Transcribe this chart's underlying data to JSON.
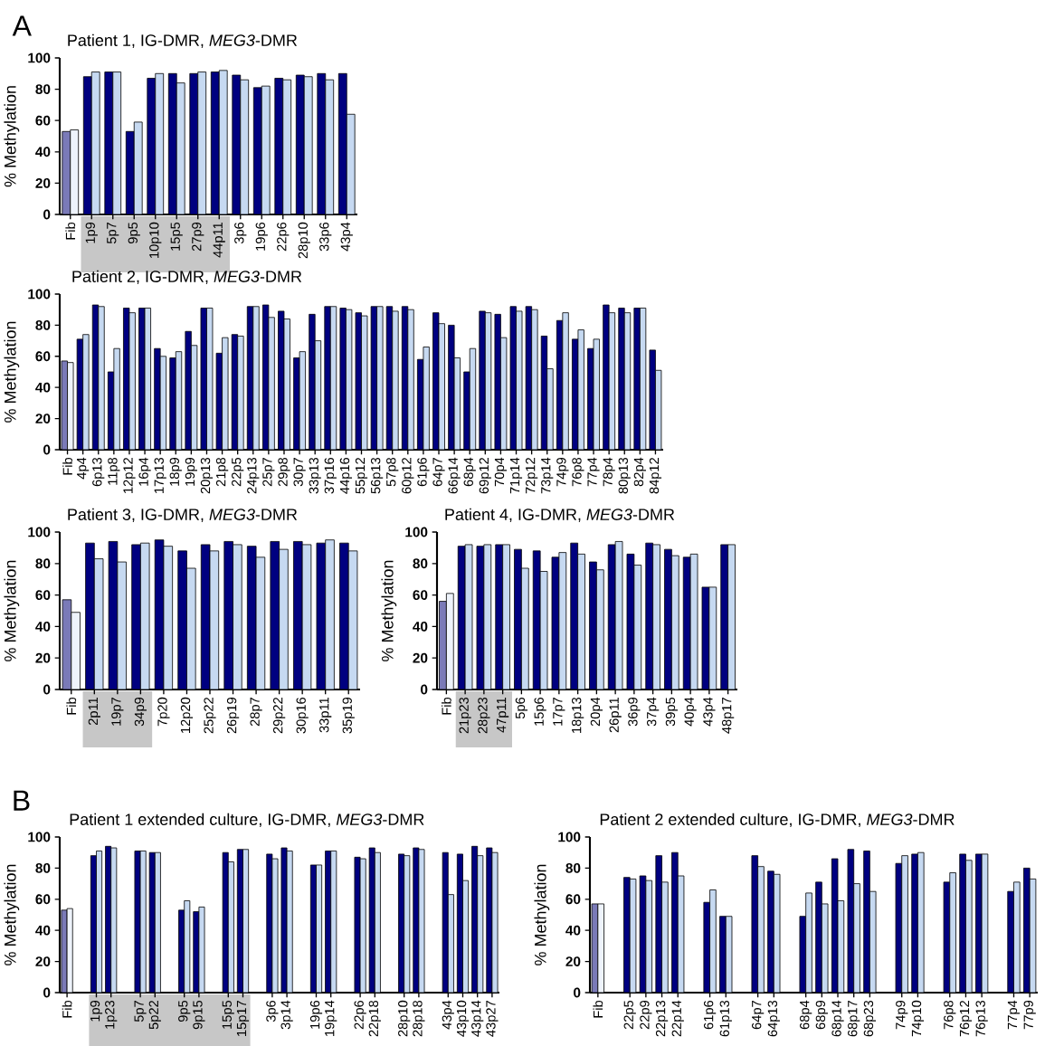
{
  "chart_data": [
    {
      "type": "bar",
      "title": "Patient 1, IG-DMR, *MEG3*-DMR",
      "ylabel": "% Methylation",
      "annotations": [
        "A"
      ],
      "ylim": [
        0,
        100
      ],
      "yticks": [
        0,
        20,
        40,
        60,
        80,
        100
      ],
      "categories": [
        "Fib",
        "1p9",
        "5p7",
        "9p5",
        "10p10",
        "15p5",
        "27p9",
        "44p11",
        "3p6",
        "19p6",
        "22p6",
        "28p10",
        "33p6",
        "43p4"
      ],
      "series": [
        {
          "colors": [
            "#7a7ab8",
            "#000080",
            "#000080",
            "#000080",
            "#000080",
            "#000080",
            "#000080",
            "#000080",
            "#000080",
            "#000080",
            "#000080",
            "#000080",
            "#000080",
            "#000080"
          ],
          "values": [
            53,
            88,
            91,
            53,
            87,
            90,
            90,
            91,
            89,
            81,
            87,
            89,
            90,
            90
          ]
        },
        {
          "colors": [
            "#eef3fb",
            "#c6d9f1",
            "#c6d9f1",
            "#c6d9f1",
            "#c6d9f1",
            "#c6d9f1",
            "#c6d9f1",
            "#c6d9f1",
            "#c6d9f1",
            "#c6d9f1",
            "#c6d9f1",
            "#c6d9f1",
            "#c6d9f1",
            "#c6d9f1"
          ],
          "values": [
            54,
            91,
            91,
            59,
            90,
            84,
            91,
            92,
            86,
            82,
            86,
            88,
            86,
            64
          ]
        }
      ]
    },
    {
      "type": "bar",
      "title": "Patient 2, IG-DMR, *MEG3*-DMR",
      "ylabel": "% Methylation",
      "ylim": [
        0,
        100
      ],
      "yticks": [
        0,
        20,
        40,
        60,
        80,
        100
      ],
      "categories": [
        "Fib",
        "4p4",
        "6p13",
        "11p8",
        "12p12",
        "16p4",
        "17p13",
        "18p9",
        "19p9",
        "20p13",
        "21p8",
        "22p5",
        "24p13",
        "25p7",
        "29p8",
        "30p7",
        "33p13",
        "37p16",
        "44p16",
        "55p12",
        "56p13",
        "57p8",
        "60p12",
        "61p6",
        "64p7",
        "66p14",
        "68p4",
        "69p12",
        "70p4",
        "71p14",
        "72p12",
        "73p14",
        "74p9",
        "76p8",
        "77p4",
        "78p4",
        "80p13",
        "82p4",
        "84p12"
      ],
      "series": [
        {
          "colors": [
            "#7a7ab8",
            "#000080",
            "#000080",
            "#000080",
            "#000080",
            "#000080",
            "#000080",
            "#000080",
            "#000080",
            "#000080",
            "#000080",
            "#000080",
            "#000080",
            "#000080",
            "#000080",
            "#000080",
            "#000080",
            "#000080",
            "#000080",
            "#000080",
            "#000080",
            "#000080",
            "#000080",
            "#000080",
            "#000080",
            "#000080",
            "#000080",
            "#000080",
            "#000080",
            "#000080",
            "#000080",
            "#000080",
            "#000080",
            "#000080",
            "#000080",
            "#000080",
            "#000080",
            "#000080",
            "#000080"
          ],
          "values": [
            57,
            71,
            93,
            50,
            91,
            91,
            65,
            59,
            76,
            91,
            62,
            74,
            92,
            93,
            89,
            59,
            87,
            92,
            91,
            88,
            92,
            92,
            92,
            58,
            88,
            80,
            50,
            89,
            87,
            92,
            92,
            73,
            83,
            71,
            65,
            93,
            91,
            91,
            64
          ]
        },
        {
          "colors": [
            "#eef3fb",
            "#c6d9f1",
            "#c6d9f1",
            "#c6d9f1",
            "#c6d9f1",
            "#c6d9f1",
            "#c6d9f1",
            "#c6d9f1",
            "#c6d9f1",
            "#c6d9f1",
            "#c6d9f1",
            "#c6d9f1",
            "#c6d9f1",
            "#c6d9f1",
            "#c6d9f1",
            "#c6d9f1",
            "#c6d9f1",
            "#c6d9f1",
            "#c6d9f1",
            "#c6d9f1",
            "#c6d9f1",
            "#c6d9f1",
            "#c6d9f1",
            "#c6d9f1",
            "#c6d9f1",
            "#c6d9f1",
            "#c6d9f1",
            "#c6d9f1",
            "#c6d9f1",
            "#c6d9f1",
            "#c6d9f1",
            "#c6d9f1",
            "#c6d9f1",
            "#c6d9f1",
            "#c6d9f1",
            "#c6d9f1",
            "#c6d9f1",
            "#c6d9f1",
            "#c6d9f1"
          ],
          "values": [
            56,
            74,
            92,
            65,
            88,
            91,
            60,
            63,
            67,
            91,
            72,
            73,
            92,
            85,
            84,
            63,
            70,
            92,
            90,
            86,
            92,
            89,
            90,
            66,
            81,
            59,
            65,
            88,
            72,
            89,
            90,
            52,
            88,
            77,
            71,
            88,
            88,
            91,
            51
          ]
        }
      ]
    },
    {
      "type": "bar",
      "title": "Patient 3, IG-DMR, *MEG3*-DMR",
      "ylabel": "% Methylation",
      "ylim": [
        0,
        100
      ],
      "yticks": [
        0,
        20,
        40,
        60,
        80,
        100
      ],
      "categories": [
        "Fib",
        "2p11",
        "19p7",
        "34p9",
        "7p20",
        "12p20",
        "25p22",
        "26p19",
        "28p7",
        "29p22",
        "30p16",
        "33p11",
        "35p19"
      ],
      "series": [
        {
          "colors": [
            "#7a7ab8",
            "#000080",
            "#000080",
            "#000080",
            "#000080",
            "#000080",
            "#000080",
            "#000080",
            "#000080",
            "#000080",
            "#000080",
            "#000080",
            "#000080"
          ],
          "values": [
            57,
            93,
            94,
            92,
            95,
            88,
            92,
            94,
            91,
            94,
            94,
            93,
            93
          ]
        },
        {
          "colors": [
            "#eef3fb",
            "#c6d9f1",
            "#c6d9f1",
            "#c6d9f1",
            "#c6d9f1",
            "#c6d9f1",
            "#c6d9f1",
            "#c6d9f1",
            "#c6d9f1",
            "#c6d9f1",
            "#c6d9f1",
            "#c6d9f1",
            "#c6d9f1"
          ],
          "values": [
            49,
            83,
            81,
            93,
            91,
            77,
            88,
            92,
            84,
            89,
            92,
            95,
            88
          ]
        }
      ]
    },
    {
      "type": "bar",
      "title": "Patient 4, IG-DMR, *MEG3*-DMR",
      "ylabel": "% Methylation",
      "ylim": [
        0,
        100
      ],
      "yticks": [
        0,
        20,
        40,
        60,
        80,
        100
      ],
      "categories": [
        "Fib",
        "21p23",
        "28p23",
        "47p11",
        "5p6",
        "15p6",
        "17p7",
        "18p13",
        "20p4",
        "26p11",
        "36p9",
        "37p4",
        "39p5",
        "40p4",
        "43p4",
        "48p17"
      ],
      "series": [
        {
          "colors": [
            "#7a7ab8",
            "#000080",
            "#000080",
            "#000080",
            "#000080",
            "#000080",
            "#000080",
            "#000080",
            "#000080",
            "#000080",
            "#000080",
            "#000080",
            "#000080",
            "#000080",
            "#000080",
            "#000080"
          ],
          "values": [
            56,
            91,
            91,
            92,
            89,
            88,
            84,
            93,
            81,
            92,
            86,
            93,
            89,
            84,
            65,
            92
          ]
        },
        {
          "colors": [
            "#eef3fb",
            "#c6d9f1",
            "#c6d9f1",
            "#c6d9f1",
            "#c6d9f1",
            "#c6d9f1",
            "#c6d9f1",
            "#c6d9f1",
            "#c6d9f1",
            "#c6d9f1",
            "#c6d9f1",
            "#c6d9f1",
            "#c6d9f1",
            "#c6d9f1",
            "#c6d9f1",
            "#c6d9f1"
          ],
          "values": [
            61,
            92,
            92,
            92,
            77,
            75,
            87,
            86,
            76,
            94,
            79,
            92,
            85,
            86,
            65,
            92
          ]
        }
      ]
    },
    {
      "type": "bar",
      "title": "Patient 1 extended culture, IG-DMR, *MEG3*-DMR",
      "ylabel": "% Methylation",
      "annotations": [
        "B"
      ],
      "ylim": [
        0,
        100
      ],
      "yticks": [
        0,
        20,
        40,
        60,
        80,
        100
      ],
      "categories": [
        "Fib",
        null,
        "1p9",
        "1p23",
        null,
        "5p7",
        "5p22",
        null,
        "9p5",
        "9p15",
        null,
        "15p5",
        "15p17",
        null,
        "3p6",
        "3p14",
        null,
        "19p6",
        "19p14",
        null,
        "22p6",
        "22p18",
        null,
        "28p10",
        "28p18",
        null,
        "43p4",
        "43p10",
        "43p14",
        "43p27"
      ],
      "series": [
        {
          "colors": [
            "#7a7ab8",
            null,
            "#000080",
            "#000080",
            null,
            "#000080",
            "#000080",
            null,
            "#000080",
            "#000080",
            null,
            "#000080",
            "#000080",
            null,
            "#000080",
            "#000080",
            null,
            "#000080",
            "#000080",
            null,
            "#000080",
            "#000080",
            null,
            "#000080",
            "#000080",
            null,
            "#000080",
            "#000080",
            "#000080",
            "#000080"
          ],
          "values": [
            53,
            null,
            88,
            94,
            null,
            91,
            90,
            null,
            53,
            52,
            null,
            90,
            92,
            null,
            89,
            93,
            null,
            82,
            91,
            null,
            87,
            93,
            null,
            89,
            93,
            null,
            90,
            89,
            94,
            93
          ]
        },
        {
          "colors": [
            "#eef3fb",
            null,
            "#c6d9f1",
            "#c6d9f1",
            null,
            "#c6d9f1",
            "#c6d9f1",
            null,
            "#c6d9f1",
            "#c6d9f1",
            null,
            "#c6d9f1",
            "#c6d9f1",
            null,
            "#c6d9f1",
            "#c6d9f1",
            null,
            "#c6d9f1",
            "#c6d9f1",
            null,
            "#c6d9f1",
            "#c6d9f1",
            null,
            "#c6d9f1",
            "#c6d9f1",
            null,
            "#c6d9f1",
            "#c6d9f1",
            "#c6d9f1",
            "#c6d9f1"
          ],
          "values": [
            54,
            null,
            91,
            93,
            null,
            91,
            90,
            null,
            59,
            55,
            null,
            84,
            92,
            null,
            86,
            91,
            null,
            82,
            91,
            null,
            86,
            90,
            null,
            88,
            92,
            null,
            63,
            72,
            88,
            90
          ]
        }
      ]
    },
    {
      "type": "bar",
      "title": "Patient 2 extended culture, IG-DMR, *MEG3*-DMR",
      "ylabel": "% Methylation",
      "ylim": [
        0,
        100
      ],
      "yticks": [
        0,
        20,
        40,
        60,
        80,
        100
      ],
      "categories": [
        "Fib",
        null,
        "22p5",
        "22p9",
        "22p13",
        "22p14",
        null,
        "61p6",
        "61p13",
        null,
        "64p7",
        "64p13",
        null,
        "68p4",
        "68p9",
        "68p14",
        "68p17",
        "68p23",
        null,
        "74p9",
        "74p10",
        null,
        "76p8",
        "76p12",
        "76p13",
        null,
        "77p4",
        "77p9"
      ],
      "series": [
        {
          "colors": [
            "#7a7ab8",
            null,
            "#000080",
            "#000080",
            "#000080",
            "#000080",
            null,
            "#000080",
            "#000080",
            null,
            "#000080",
            "#000080",
            null,
            "#000080",
            "#000080",
            "#000080",
            "#000080",
            "#000080",
            null,
            "#000080",
            "#000080",
            null,
            "#000080",
            "#000080",
            "#000080",
            null,
            "#000080",
            "#000080"
          ],
          "values": [
            57,
            null,
            74,
            75,
            88,
            90,
            null,
            58,
            49,
            null,
            88,
            78,
            null,
            49,
            71,
            86,
            92,
            91,
            null,
            83,
            89,
            null,
            71,
            89,
            89,
            null,
            65,
            80
          ]
        },
        {
          "colors": [
            "#eef3fb",
            null,
            "#c6d9f1",
            "#c6d9f1",
            "#c6d9f1",
            "#c6d9f1",
            null,
            "#c6d9f1",
            "#c6d9f1",
            null,
            "#c6d9f1",
            "#c6d9f1",
            null,
            "#c6d9f1",
            "#c6d9f1",
            "#c6d9f1",
            "#c6d9f1",
            "#c6d9f1",
            null,
            "#c6d9f1",
            "#c6d9f1",
            null,
            "#c6d9f1",
            "#c6d9f1",
            "#c6d9f1",
            null,
            "#c6d9f1",
            "#c6d9f1"
          ],
          "values": [
            57,
            null,
            73,
            72,
            71,
            75,
            null,
            66,
            49,
            null,
            81,
            76,
            null,
            64,
            57,
            59,
            70,
            65,
            null,
            88,
            90,
            null,
            77,
            85,
            89,
            null,
            71,
            73
          ]
        }
      ]
    }
  ]
}
